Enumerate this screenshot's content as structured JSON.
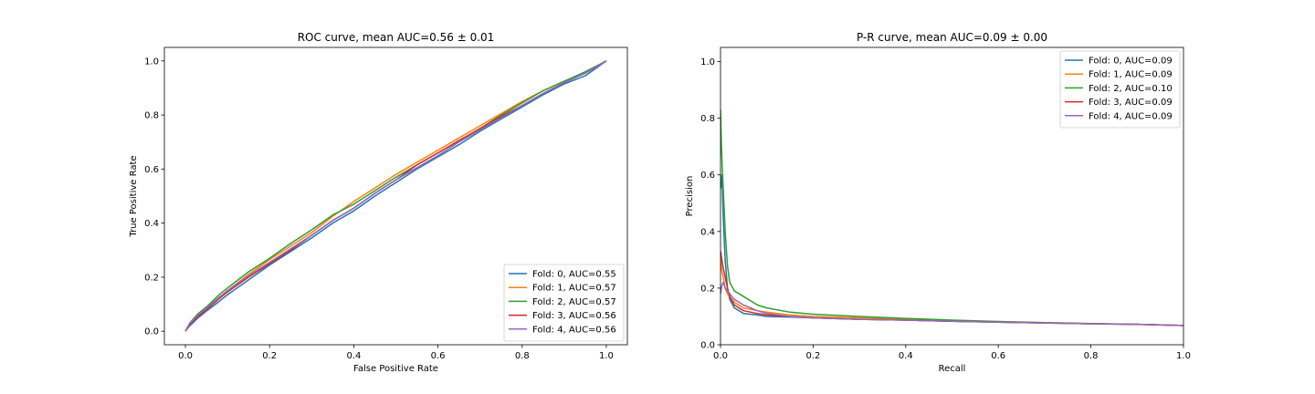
{
  "chart_data": [
    {
      "type": "line",
      "title": "ROC curve, mean AUC=0.56 ± 0.01",
      "xlabel": "False Positive Rate",
      "ylabel": "True Positive Rate",
      "xlim": [
        -0.05,
        1.05
      ],
      "ylim": [
        -0.05,
        1.05
      ],
      "xticks": [
        "0.0",
        "0.2",
        "0.4",
        "0.6",
        "0.8",
        "1.0"
      ],
      "yticks": [
        "0.0",
        "0.2",
        "0.4",
        "0.6",
        "0.8",
        "1.0"
      ],
      "grid": false,
      "legend_position": "lower-right",
      "series": [
        {
          "name": "Fold: 0, AUC=0.55",
          "color": "#1f77b4",
          "x": [
            0,
            0.01,
            0.03,
            0.05,
            0.08,
            0.1,
            0.15,
            0.2,
            0.25,
            0.3,
            0.35,
            0.4,
            0.45,
            0.5,
            0.55,
            0.6,
            0.65,
            0.7,
            0.75,
            0.8,
            0.85,
            0.9,
            0.95,
            1.0
          ],
          "y": [
            0,
            0.02,
            0.05,
            0.075,
            0.11,
            0.135,
            0.19,
            0.245,
            0.295,
            0.345,
            0.4,
            0.445,
            0.5,
            0.55,
            0.6,
            0.645,
            0.69,
            0.74,
            0.785,
            0.83,
            0.875,
            0.915,
            0.945,
            1.0
          ]
        },
        {
          "name": "Fold: 1, AUC=0.57",
          "color": "#ff7f0e",
          "x": [
            0,
            0.01,
            0.03,
            0.05,
            0.08,
            0.1,
            0.15,
            0.2,
            0.25,
            0.3,
            0.35,
            0.4,
            0.45,
            0.5,
            0.55,
            0.6,
            0.65,
            0.7,
            0.75,
            0.8,
            0.85,
            0.9,
            0.95,
            1.0
          ],
          "y": [
            0,
            0.025,
            0.06,
            0.085,
            0.125,
            0.15,
            0.21,
            0.265,
            0.315,
            0.365,
            0.425,
            0.48,
            0.53,
            0.58,
            0.625,
            0.67,
            0.715,
            0.76,
            0.805,
            0.85,
            0.89,
            0.925,
            0.955,
            1.0
          ]
        },
        {
          "name": "Fold: 2, AUC=0.57",
          "color": "#2ca02c",
          "x": [
            0,
            0.01,
            0.03,
            0.05,
            0.08,
            0.1,
            0.15,
            0.2,
            0.25,
            0.3,
            0.35,
            0.4,
            0.45,
            0.5,
            0.55,
            0.6,
            0.65,
            0.7,
            0.75,
            0.8,
            0.85,
            0.9,
            0.95,
            1.0
          ],
          "y": [
            0,
            0.03,
            0.065,
            0.09,
            0.135,
            0.16,
            0.22,
            0.27,
            0.325,
            0.375,
            0.43,
            0.47,
            0.52,
            0.57,
            0.615,
            0.66,
            0.705,
            0.75,
            0.8,
            0.845,
            0.89,
            0.925,
            0.96,
            1.0
          ]
        },
        {
          "name": "Fold: 3, AUC=0.56",
          "color": "#d62728",
          "x": [
            0,
            0.01,
            0.03,
            0.05,
            0.08,
            0.1,
            0.15,
            0.2,
            0.25,
            0.3,
            0.35,
            0.4,
            0.45,
            0.5,
            0.55,
            0.6,
            0.65,
            0.7,
            0.75,
            0.8,
            0.85,
            0.9,
            0.95,
            1.0
          ],
          "y": [
            0,
            0.025,
            0.055,
            0.08,
            0.12,
            0.145,
            0.2,
            0.25,
            0.3,
            0.355,
            0.41,
            0.455,
            0.51,
            0.56,
            0.615,
            0.66,
            0.705,
            0.75,
            0.795,
            0.835,
            0.88,
            0.92,
            0.955,
            1.0
          ]
        },
        {
          "name": "Fold: 4, AUC=0.56",
          "color": "#9467bd",
          "x": [
            0,
            0.01,
            0.03,
            0.05,
            0.08,
            0.1,
            0.15,
            0.2,
            0.25,
            0.3,
            0.35,
            0.4,
            0.45,
            0.5,
            0.55,
            0.6,
            0.65,
            0.7,
            0.75,
            0.8,
            0.85,
            0.9,
            0.95,
            1.0
          ],
          "y": [
            0,
            0.028,
            0.06,
            0.085,
            0.125,
            0.15,
            0.205,
            0.255,
            0.305,
            0.355,
            0.41,
            0.455,
            0.51,
            0.56,
            0.605,
            0.65,
            0.7,
            0.745,
            0.79,
            0.835,
            0.88,
            0.92,
            0.955,
            1.0
          ]
        }
      ]
    },
    {
      "type": "line",
      "title": "P-R curve, mean AUC=0.09 ± 0.00",
      "xlabel": "Recall",
      "ylabel": "Precision",
      "xlim": [
        0,
        1.0
      ],
      "ylim": [
        0,
        1.05
      ],
      "xticks": [
        "0.0",
        "0.2",
        "0.4",
        "0.6",
        "0.8",
        "1.0"
      ],
      "yticks": [
        "0.0",
        "0.2",
        "0.4",
        "0.6",
        "0.8",
        "1.0"
      ],
      "grid": false,
      "legend_position": "upper-right",
      "series": [
        {
          "name": "Fold: 0, AUC=0.09",
          "color": "#1f77b4",
          "x": [
            0,
            0.003,
            0.006,
            0.01,
            0.015,
            0.02,
            0.03,
            0.05,
            0.08,
            0.1,
            0.15,
            0.2,
            0.3,
            0.4,
            0.5,
            0.6,
            0.7,
            0.8,
            0.9,
            1.0
          ],
          "y": [
            0.55,
            0.6,
            0.45,
            0.3,
            0.2,
            0.16,
            0.13,
            0.11,
            0.105,
            0.1,
            0.098,
            0.095,
            0.09,
            0.087,
            0.083,
            0.08,
            0.077,
            0.074,
            0.072,
            0.068
          ]
        },
        {
          "name": "Fold: 1, AUC=0.09",
          "color": "#ff7f0e",
          "x": [
            0,
            0.003,
            0.006,
            0.01,
            0.015,
            0.02,
            0.03,
            0.05,
            0.08,
            0.1,
            0.15,
            0.2,
            0.3,
            0.4,
            0.5,
            0.6,
            0.7,
            0.8,
            0.9,
            1.0
          ],
          "y": [
            0.3,
            0.26,
            0.24,
            0.2,
            0.18,
            0.17,
            0.15,
            0.13,
            0.12,
            0.115,
            0.105,
            0.1,
            0.095,
            0.09,
            0.085,
            0.081,
            0.078,
            0.075,
            0.072,
            0.068
          ]
        },
        {
          "name": "Fold: 2, AUC=0.10",
          "color": "#2ca02c",
          "x": [
            0,
            0.002,
            0.004,
            0.006,
            0.01,
            0.015,
            0.02,
            0.03,
            0.05,
            0.08,
            0.1,
            0.15,
            0.2,
            0.3,
            0.4,
            0.5,
            0.6,
            0.7,
            0.8,
            0.9,
            1.0
          ],
          "y": [
            0.83,
            0.7,
            0.62,
            0.55,
            0.4,
            0.28,
            0.22,
            0.19,
            0.17,
            0.14,
            0.13,
            0.115,
            0.108,
            0.1,
            0.093,
            0.087,
            0.082,
            0.078,
            0.075,
            0.072,
            0.068
          ]
        },
        {
          "name": "Fold: 3, AUC=0.09",
          "color": "#d62728",
          "x": [
            0,
            0.003,
            0.006,
            0.01,
            0.015,
            0.02,
            0.03,
            0.05,
            0.08,
            0.1,
            0.15,
            0.2,
            0.3,
            0.4,
            0.5,
            0.6,
            0.7,
            0.8,
            0.9,
            1.0
          ],
          "y": [
            0.33,
            0.3,
            0.27,
            0.24,
            0.2,
            0.17,
            0.14,
            0.12,
            0.11,
            0.105,
            0.1,
            0.095,
            0.09,
            0.087,
            0.083,
            0.08,
            0.077,
            0.074,
            0.072,
            0.068
          ]
        },
        {
          "name": "Fold: 4, AUC=0.09",
          "color": "#9467bd",
          "x": [
            0,
            0.003,
            0.006,
            0.01,
            0.015,
            0.02,
            0.03,
            0.05,
            0.08,
            0.1,
            0.15,
            0.2,
            0.3,
            0.4,
            0.5,
            0.6,
            0.7,
            0.8,
            0.9,
            1.0
          ],
          "y": [
            0.18,
            0.21,
            0.22,
            0.2,
            0.19,
            0.18,
            0.16,
            0.14,
            0.12,
            0.11,
            0.1,
            0.095,
            0.09,
            0.087,
            0.083,
            0.08,
            0.077,
            0.074,
            0.072,
            0.068
          ]
        }
      ]
    }
  ]
}
